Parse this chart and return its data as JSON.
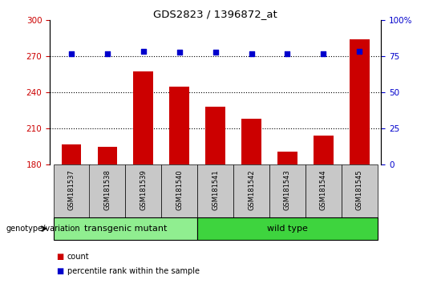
{
  "title": "GDS2823 / 1396872_at",
  "samples": [
    "GSM181537",
    "GSM181538",
    "GSM181539",
    "GSM181540",
    "GSM181541",
    "GSM181542",
    "GSM181543",
    "GSM181544",
    "GSM181545"
  ],
  "counts": [
    197,
    195,
    257,
    245,
    228,
    218,
    191,
    204,
    284
  ],
  "percentile_ranks": [
    272,
    272,
    274,
    273,
    273,
    272,
    272,
    272,
    274
  ],
  "ylim_left": [
    180,
    300
  ],
  "ylim_right": [
    0,
    100
  ],
  "yticks_left": [
    180,
    210,
    240,
    270,
    300
  ],
  "yticks_right": [
    0,
    25,
    50,
    75,
    100
  ],
  "groups": [
    {
      "label": "transgenic mutant",
      "start": 0,
      "end": 3,
      "color": "#90EE90"
    },
    {
      "label": "wild type",
      "start": 4,
      "end": 8,
      "color": "#3ED43E"
    }
  ],
  "bar_color": "#CC0000",
  "dot_color": "#0000CC",
  "tick_bg_color": "#C8C8C8",
  "left_ytick_color": "#CC0000",
  "right_ytick_color": "#0000CC",
  "grid_lines": [
    270,
    240,
    210
  ]
}
